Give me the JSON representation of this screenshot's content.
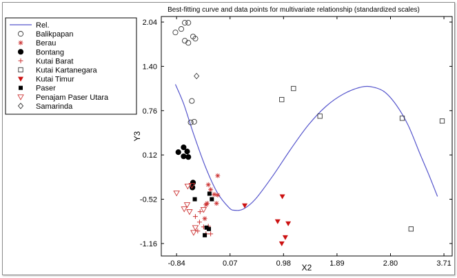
{
  "chart_data": {
    "type": "scatter",
    "title": "Best-fitting curve and data points for multivariate relationship (standardized scales)",
    "xlabel": "X2",
    "ylabel": "Y3",
    "xlim": [
      -1.1,
      3.85
    ],
    "ylim": [
      -1.34,
      2.12
    ],
    "xticks": [
      "-0.84",
      "0.07",
      "0.98",
      "1.89",
      "2.80",
      "3.71"
    ],
    "yticks": [
      "-1.16",
      "-0.52",
      "0.12",
      "0.76",
      "1.40",
      "2.04"
    ],
    "legend_position": "top-left",
    "curve": {
      "name": "Rel.",
      "color": "#5555cc",
      "x": [
        -0.86,
        -0.72,
        -0.55,
        -0.35,
        -0.15,
        0.05,
        0.15,
        0.3,
        0.5,
        0.8,
        1.1,
        1.4,
        1.7,
        2.0,
        2.3,
        2.5,
        2.7,
        2.9,
        3.1,
        3.3,
        3.45,
        3.6
      ],
      "y": [
        1.14,
        0.86,
        0.42,
        -0.05,
        -0.42,
        -0.64,
        -0.68,
        -0.66,
        -0.52,
        -0.18,
        0.2,
        0.55,
        0.82,
        1.0,
        1.1,
        1.1,
        1.03,
        0.84,
        0.55,
        0.14,
        -0.16,
        -0.48
      ]
    },
    "series": [
      {
        "name": "Balikpapan",
        "marker": "circle-open",
        "color": "#333333",
        "points": [
          [
            -0.86,
            1.89
          ],
          [
            -0.76,
            1.94
          ],
          [
            -0.7,
            2.03
          ],
          [
            -0.64,
            2.03
          ],
          [
            -0.7,
            1.77
          ],
          [
            -0.64,
            1.74
          ],
          [
            -0.56,
            1.83
          ],
          [
            -0.52,
            1.8
          ],
          [
            -0.58,
            0.9
          ],
          [
            -0.6,
            0.59
          ],
          [
            -0.54,
            0.6
          ]
        ]
      },
      {
        "name": "Berau",
        "marker": "asterisk",
        "color": "#cc3333",
        "points": [
          [
            -0.3,
            -0.31
          ],
          [
            -0.26,
            -0.38
          ],
          [
            -0.2,
            -0.45
          ],
          [
            -0.34,
            -0.6
          ],
          [
            -0.36,
            -0.8
          ],
          [
            -0.32,
            -0.58
          ],
          [
            -0.14,
            -0.46
          ],
          [
            -0.16,
            -0.58
          ],
          [
            -0.14,
            -0.18
          ]
        ]
      },
      {
        "name": "Bontang",
        "marker": "circle-filled",
        "color": "#000000",
        "points": [
          [
            -0.81,
            0.16
          ],
          [
            -0.72,
            0.23
          ],
          [
            -0.66,
            0.17
          ],
          [
            -0.72,
            0.1
          ],
          [
            -0.64,
            0.09
          ],
          [
            -0.56,
            -0.28
          ],
          [
            -0.57,
            -0.35
          ]
        ]
      },
      {
        "name": "Kutai Barat",
        "marker": "plus",
        "color": "#cc3333",
        "points": [
          [
            -0.44,
            -0.7
          ],
          [
            -0.52,
            -0.77
          ],
          [
            -0.45,
            -0.85
          ],
          [
            -0.38,
            -0.92
          ],
          [
            -0.3,
            -0.91
          ],
          [
            -0.48,
            -0.98
          ],
          [
            -0.34,
            -1.02
          ],
          [
            -0.26,
            -1.02
          ]
        ]
      },
      {
        "name": "Kutai Kartanegara",
        "marker": "square-open",
        "color": "#333333",
        "points": [
          [
            0.95,
            0.92
          ],
          [
            1.15,
            1.08
          ],
          [
            1.6,
            0.68
          ],
          [
            3.0,
            0.65
          ],
          [
            3.15,
            -0.95
          ],
          [
            3.68,
            0.61
          ]
        ]
      },
      {
        "name": "Kutai Timur",
        "marker": "triangle-down-filled",
        "color": "#cc1111",
        "points": [
          [
            0.32,
            -0.61
          ],
          [
            0.88,
            -0.84
          ],
          [
            0.96,
            -0.48
          ],
          [
            1.01,
            -1.07
          ],
          [
            1.06,
            -0.87
          ],
          [
            0.95,
            -1.16
          ]
        ]
      },
      {
        "name": "Paser",
        "marker": "square-filled",
        "color": "#000000",
        "points": [
          [
            -0.53,
            -0.52
          ],
          [
            -0.28,
            -0.44
          ],
          [
            -0.24,
            -0.52
          ],
          [
            -0.33,
            -0.93
          ],
          [
            -0.29,
            -0.95
          ],
          [
            -0.36,
            -1.04
          ]
        ]
      },
      {
        "name": "Penajam Paser Utara",
        "marker": "triangle-down-open",
        "color": "#cc3333",
        "points": [
          [
            -0.84,
            -0.43
          ],
          [
            -0.65,
            -0.33
          ],
          [
            -0.58,
            -0.32
          ],
          [
            -0.66,
            -0.6
          ],
          [
            -0.62,
            -0.7
          ],
          [
            -0.52,
            -0.93
          ],
          [
            -0.55,
            -1.0
          ],
          [
            -0.38,
            -0.67
          ],
          [
            -0.71,
            -0.66
          ]
        ]
      },
      {
        "name": "Samarinda",
        "marker": "diamond-open",
        "color": "#333333",
        "points": [
          [
            -0.5,
            1.26
          ]
        ]
      }
    ]
  }
}
